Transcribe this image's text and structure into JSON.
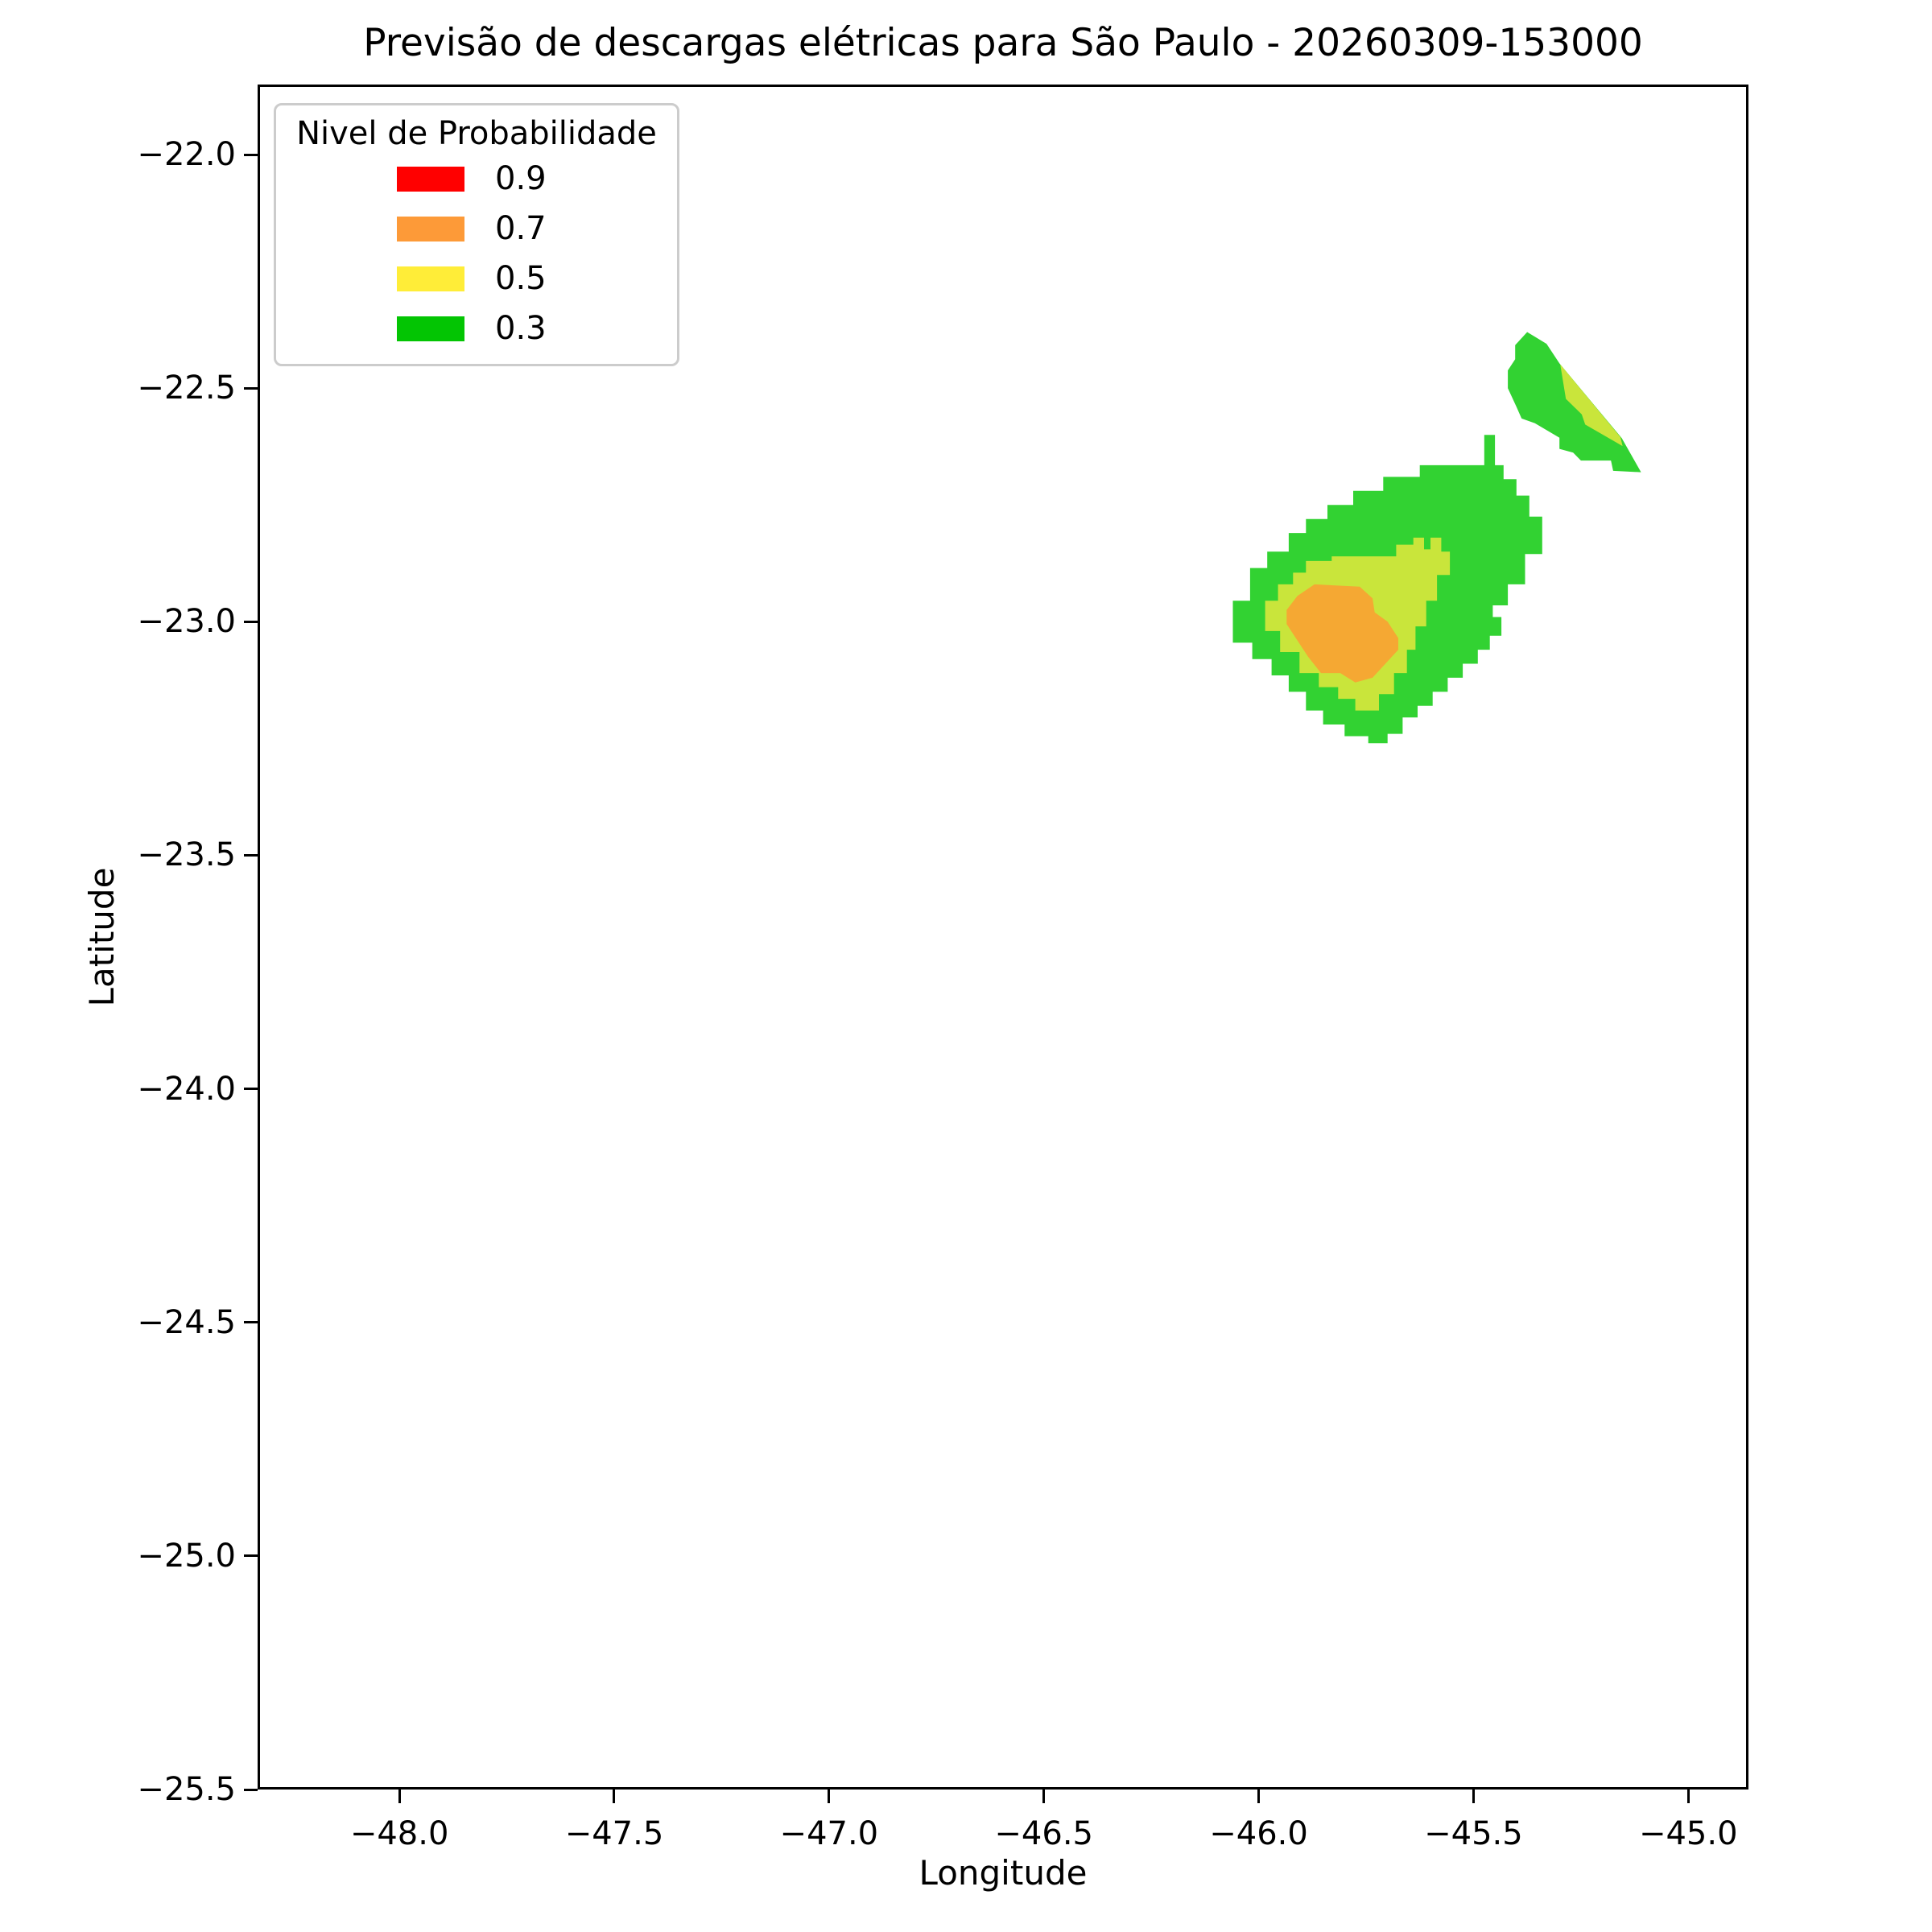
{
  "title": "Previsão de descargas elétricas para São Paulo - 20260309-153000",
  "axes": {
    "xlabel": "Longitude",
    "ylabel": "Latitude",
    "xlim": [
      -48.33,
      -44.86
    ],
    "ylim": [
      -25.5,
      -21.85
    ],
    "xticks": [
      {
        "value": -48.0,
        "label": "−48.0"
      },
      {
        "value": -47.5,
        "label": "−47.5"
      },
      {
        "value": -47.0,
        "label": "−47.0"
      },
      {
        "value": -46.5,
        "label": "−46.5"
      },
      {
        "value": -46.0,
        "label": "−46.0"
      },
      {
        "value": -45.5,
        "label": "−45.5"
      },
      {
        "value": -45.0,
        "label": "−45.0"
      }
    ],
    "yticks": [
      {
        "value": -22.0,
        "label": "−22.0"
      },
      {
        "value": -22.5,
        "label": "−22.5"
      },
      {
        "value": -23.0,
        "label": "−23.0"
      },
      {
        "value": -23.5,
        "label": "−23.5"
      },
      {
        "value": -24.0,
        "label": "−24.0"
      },
      {
        "value": -24.5,
        "label": "−24.5"
      },
      {
        "value": -25.0,
        "label": "−25.0"
      },
      {
        "value": -25.5,
        "label": "−25.5"
      }
    ]
  },
  "legend": {
    "title": "Nivel de Probabilidade",
    "entries": [
      {
        "label": "0.9",
        "color": "#ff0000"
      },
      {
        "label": "0.7",
        "color": "#fd9a38"
      },
      {
        "label": "0.5",
        "color": "#ffed38"
      },
      {
        "label": "0.3",
        "color": "#03c503"
      }
    ]
  },
  "chart_data": {
    "type": "heatmap",
    "subtype": "filled-contour-map",
    "title": "Previsão de descargas elétricas para São Paulo - 20260309-153000",
    "xlabel": "Longitude",
    "ylabel": "Latitude",
    "xlim": [
      -48.33,
      -44.86
    ],
    "ylim": [
      -25.5,
      -21.85
    ],
    "grid": false,
    "legend_position": "upper left",
    "probability_levels": [
      0.9,
      0.7,
      0.5,
      0.3
    ],
    "level_colors": {
      "0.9": "#ff0000",
      "0.7": "#fd9a38",
      "0.5": "#ffed38",
      "0.3": "#03c503"
    },
    "regions": [
      {
        "name": "main-cell-p03",
        "level": 0.3,
        "color": "#32d232",
        "points": [
          [
            -45.93,
            -22.85
          ],
          [
            -45.93,
            -22.81
          ],
          [
            -45.89,
            -22.81
          ],
          [
            -45.89,
            -22.78
          ],
          [
            -45.84,
            -22.78
          ],
          [
            -45.84,
            -22.75
          ],
          [
            -45.78,
            -22.75
          ],
          [
            -45.78,
            -22.72
          ],
          [
            -45.71,
            -22.72
          ],
          [
            -45.71,
            -22.69
          ],
          [
            -45.625,
            -22.69
          ],
          [
            -45.625,
            -22.665
          ],
          [
            -45.475,
            -22.665
          ],
          [
            -45.475,
            -22.6
          ],
          [
            -45.45,
            -22.6
          ],
          [
            -45.45,
            -22.665
          ],
          [
            -45.43,
            -22.665
          ],
          [
            -45.43,
            -22.695
          ],
          [
            -45.4,
            -22.695
          ],
          [
            -45.4,
            -22.73
          ],
          [
            -45.37,
            -22.73
          ],
          [
            -45.37,
            -22.775
          ],
          [
            -45.34,
            -22.775
          ],
          [
            -45.34,
            -22.855
          ],
          [
            -45.38,
            -22.855
          ],
          [
            -45.38,
            -22.92
          ],
          [
            -45.42,
            -22.92
          ],
          [
            -45.42,
            -22.965
          ],
          [
            -45.455,
            -22.965
          ],
          [
            -45.455,
            -22.99
          ],
          [
            -45.435,
            -22.99
          ],
          [
            -45.435,
            -23.03
          ],
          [
            -45.462,
            -23.03
          ],
          [
            -45.462,
            -23.06
          ],
          [
            -45.49,
            -23.06
          ],
          [
            -45.49,
            -23.09
          ],
          [
            -45.525,
            -23.09
          ],
          [
            -45.525,
            -23.12
          ],
          [
            -45.56,
            -23.12
          ],
          [
            -45.56,
            -23.15
          ],
          [
            -45.595,
            -23.15
          ],
          [
            -45.595,
            -23.18
          ],
          [
            -45.63,
            -23.18
          ],
          [
            -45.63,
            -23.205
          ],
          [
            -45.665,
            -23.205
          ],
          [
            -45.665,
            -23.24
          ],
          [
            -45.7,
            -23.24
          ],
          [
            -45.7,
            -23.26
          ],
          [
            -45.745,
            -23.26
          ],
          [
            -45.745,
            -23.245
          ],
          [
            -45.8,
            -23.245
          ],
          [
            -45.8,
            -23.22
          ],
          [
            -45.85,
            -23.22
          ],
          [
            -45.85,
            -23.19
          ],
          [
            -45.89,
            -23.19
          ],
          [
            -45.89,
            -23.15
          ],
          [
            -45.93,
            -23.15
          ],
          [
            -45.93,
            -23.115
          ],
          [
            -45.97,
            -23.115
          ],
          [
            -45.97,
            -23.08
          ],
          [
            -46.015,
            -23.08
          ],
          [
            -46.015,
            -23.045
          ],
          [
            -46.06,
            -23.045
          ],
          [
            -46.06,
            -22.955
          ],
          [
            -46.02,
            -22.955
          ],
          [
            -46.02,
            -22.885
          ],
          [
            -45.98,
            -22.885
          ],
          [
            -45.98,
            -22.85
          ]
        ]
      },
      {
        "name": "main-cell-p05",
        "level": 0.5,
        "color": "#c9e53b",
        "points": [
          [
            -45.89,
            -22.895
          ],
          [
            -45.89,
            -22.87
          ],
          [
            -45.83,
            -22.87
          ],
          [
            -45.83,
            -22.86
          ],
          [
            -45.68,
            -22.86
          ],
          [
            -45.68,
            -22.835
          ],
          [
            -45.64,
            -22.835
          ],
          [
            -45.64,
            -22.82
          ],
          [
            -45.615,
            -22.82
          ],
          [
            -45.615,
            -22.845
          ],
          [
            -45.6,
            -22.845
          ],
          [
            -45.6,
            -22.82
          ],
          [
            -45.575,
            -22.82
          ],
          [
            -45.575,
            -22.85
          ],
          [
            -45.555,
            -22.85
          ],
          [
            -45.555,
            -22.9
          ],
          [
            -45.585,
            -22.9
          ],
          [
            -45.585,
            -22.955
          ],
          [
            -45.61,
            -22.955
          ],
          [
            -45.61,
            -23.01
          ],
          [
            -45.635,
            -23.01
          ],
          [
            -45.635,
            -23.06
          ],
          [
            -45.655,
            -23.06
          ],
          [
            -45.655,
            -23.11
          ],
          [
            -45.685,
            -23.11
          ],
          [
            -45.685,
            -23.155
          ],
          [
            -45.72,
            -23.155
          ],
          [
            -45.72,
            -23.19
          ],
          [
            -45.775,
            -23.19
          ],
          [
            -45.775,
            -23.165
          ],
          [
            -45.815,
            -23.165
          ],
          [
            -45.815,
            -23.14
          ],
          [
            -45.86,
            -23.14
          ],
          [
            -45.86,
            -23.11
          ],
          [
            -45.905,
            -23.11
          ],
          [
            -45.905,
            -23.065
          ],
          [
            -45.95,
            -23.065
          ],
          [
            -45.95,
            -23.02
          ],
          [
            -45.985,
            -23.02
          ],
          [
            -45.985,
            -22.955
          ],
          [
            -45.955,
            -22.955
          ],
          [
            -45.955,
            -22.92
          ],
          [
            -45.92,
            -22.92
          ],
          [
            -45.92,
            -22.895
          ]
        ]
      },
      {
        "name": "main-cell-p07",
        "level": 0.7,
        "color": "#f5a833",
        "points": [
          [
            -45.87,
            -22.92
          ],
          [
            -45.765,
            -22.925
          ],
          [
            -45.735,
            -22.95
          ],
          [
            -45.73,
            -22.98
          ],
          [
            -45.7,
            -23.0
          ],
          [
            -45.675,
            -23.035
          ],
          [
            -45.675,
            -23.06
          ],
          [
            -45.705,
            -23.09
          ],
          [
            -45.735,
            -23.12
          ],
          [
            -45.775,
            -23.13
          ],
          [
            -45.81,
            -23.11
          ],
          [
            -45.855,
            -23.11
          ],
          [
            -45.885,
            -23.075
          ],
          [
            -45.91,
            -23.04
          ],
          [
            -45.935,
            -23.005
          ],
          [
            -45.935,
            -22.975
          ],
          [
            -45.91,
            -22.945
          ]
        ]
      },
      {
        "name": "northeast-cell-p03",
        "level": 0.3,
        "color": "#32d232",
        "points": [
          [
            -45.375,
            -22.38
          ],
          [
            -45.33,
            -22.405
          ],
          [
            -45.3,
            -22.447
          ],
          [
            -45.155,
            -22.607
          ],
          [
            -45.11,
            -22.68
          ],
          [
            -45.175,
            -22.677
          ],
          [
            -45.18,
            -22.655
          ],
          [
            -45.25,
            -22.655
          ],
          [
            -45.268,
            -22.638
          ],
          [
            -45.3,
            -22.63
          ],
          [
            -45.3,
            -22.606
          ],
          [
            -45.357,
            -22.575
          ],
          [
            -45.388,
            -22.565
          ],
          [
            -45.4,
            -22.54
          ],
          [
            -45.42,
            -22.5
          ],
          [
            -45.42,
            -22.462
          ],
          [
            -45.403,
            -22.438
          ],
          [
            -45.403,
            -22.408
          ]
        ]
      },
      {
        "name": "northeast-cell-p05",
        "level": 0.5,
        "color": "#c9e53b",
        "points": [
          [
            -45.298,
            -22.449
          ],
          [
            -45.158,
            -22.605
          ],
          [
            -45.153,
            -22.624
          ],
          [
            -45.24,
            -22.578
          ],
          [
            -45.248,
            -22.556
          ],
          [
            -45.285,
            -22.523
          ]
        ]
      }
    ]
  }
}
